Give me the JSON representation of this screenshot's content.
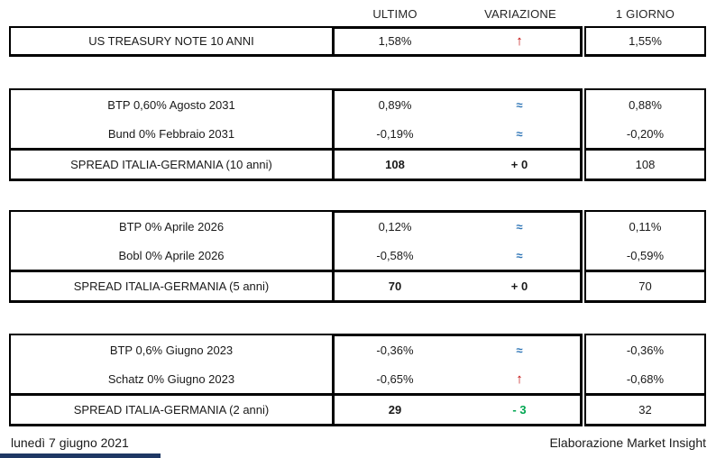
{
  "colors": {
    "up_red": "#C00000",
    "approx_blue": "#2E75B6",
    "down_green": "#00A651",
    "neutral_black": "#1a1a1a",
    "bottom_bar_navy": "#1F3864"
  },
  "header": {
    "col_ultimo": "ULTIMO",
    "col_variazione": "VARIAZIONE",
    "col_giorno": "1 GIORNO"
  },
  "treasury": {
    "label": "US TREASURY NOTE 10 ANNI",
    "ultimo": "1,58%",
    "variazione": "↑",
    "variazione_color": "#C00000",
    "giorno": "1,55%"
  },
  "sections": [
    {
      "rows": [
        {
          "label": "BTP 0,60% Agosto 2031",
          "ultimo": "0,89%",
          "variazione": "≈",
          "variazione_color": "#2E75B6",
          "giorno": "0,88%"
        },
        {
          "label": "Bund 0% Febbraio 2031",
          "ultimo": "-0,19%",
          "variazione": "≈",
          "variazione_color": "#2E75B6",
          "giorno": "-0,20%"
        }
      ],
      "spread": {
        "label": "SPREAD ITALIA-GERMANIA (10 anni)",
        "ultimo": "108",
        "variazione": "+ 0",
        "variazione_color": "#1a1a1a",
        "giorno": "108"
      }
    },
    {
      "rows": [
        {
          "label": "BTP 0% Aprile 2026",
          "ultimo": "0,12%",
          "variazione": "≈",
          "variazione_color": "#2E75B6",
          "giorno": "0,11%"
        },
        {
          "label": "Bobl 0% Aprile 2026",
          "ultimo": "-0,58%",
          "variazione": "≈",
          "variazione_color": "#2E75B6",
          "giorno": "-0,59%"
        }
      ],
      "spread": {
        "label": "SPREAD ITALIA-GERMANIA (5 anni)",
        "ultimo": "70",
        "variazione": "+ 0",
        "variazione_color": "#1a1a1a",
        "giorno": "70"
      }
    },
    {
      "rows": [
        {
          "label": "BTP 0,6% Giugno 2023",
          "ultimo": "-0,36%",
          "variazione": "≈",
          "variazione_color": "#2E75B6",
          "giorno": "-0,36%"
        },
        {
          "label": "Schatz 0% Giugno 2023",
          "ultimo": "-0,65%",
          "variazione": "↑",
          "variazione_color": "#C00000",
          "giorno": "-0,68%"
        }
      ],
      "spread": {
        "label": "SPREAD ITALIA-GERMANIA (2 anni)",
        "ultimo": "29",
        "variazione": "- 3",
        "variazione_color": "#00A651",
        "giorno": "32"
      }
    }
  ],
  "footer": {
    "date": "lunedì 7 giugno 2021",
    "credit": "Elaborazione Market Insight"
  }
}
